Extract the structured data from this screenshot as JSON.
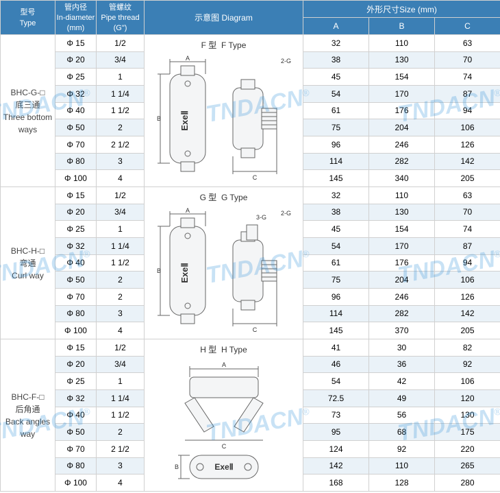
{
  "header": {
    "type": {
      "cn": "型号",
      "en": "Type"
    },
    "in_diameter": {
      "cn": "管内径",
      "en": "In-diameter",
      "unit": "(mm)"
    },
    "pipe_thread": {
      "cn": "管螺纹",
      "en": "Pipe thread",
      "unit": "(G\")"
    },
    "diagram": {
      "cn": "示意图",
      "en": "Diagram"
    },
    "size_group": {
      "cn": "外形尺寸",
      "en": "Size",
      "unit": "(mm)"
    },
    "A": "A",
    "B": "B",
    "C": "C"
  },
  "watermark": "TNDACN",
  "colors": {
    "header_bg": "#3b7fb5",
    "header_fg": "#ffffff",
    "row_alt_bg": "#eaf2f8",
    "row_bg": "#ffffff",
    "border": "#d0d0d0",
    "watermark": "#2a8ed8",
    "diagram_stroke": "#666666",
    "diagram_fill": "#f4f5f6"
  },
  "groups": [
    {
      "type_code": "BHC-G-□",
      "type_cn": "底三通",
      "type_en": "Three bottom ways",
      "diagram": {
        "label_cn": "F 型",
        "label_en": "F Type",
        "kind": "F"
      },
      "rows": [
        {
          "d": "Φ 15",
          "t": "1/2",
          "A": "32",
          "B": "110",
          "C": "63"
        },
        {
          "d": "Φ 20",
          "t": "3/4",
          "A": "38",
          "B": "130",
          "C": "70"
        },
        {
          "d": "Φ 25",
          "t": "1",
          "A": "45",
          "B": "154",
          "C": "74"
        },
        {
          "d": "Φ 32",
          "t": "1 1/4",
          "A": "54",
          "B": "170",
          "C": "87"
        },
        {
          "d": "Φ 40",
          "t": "1 1/2",
          "A": "61",
          "B": "176",
          "C": "94"
        },
        {
          "d": "Φ 50",
          "t": "2",
          "A": "75",
          "B": "204",
          "C": "106"
        },
        {
          "d": "Φ 70",
          "t": "2 1/2",
          "A": "96",
          "B": "246",
          "C": "126"
        },
        {
          "d": "Φ 80",
          "t": "3",
          "A": "114",
          "B": "282",
          "C": "142"
        },
        {
          "d": "Φ 100",
          "t": "4",
          "A": "145",
          "B": "340",
          "C": "205"
        }
      ]
    },
    {
      "type_code": "BHC-H-□",
      "type_cn": "弯通",
      "type_en": "Curl way",
      "diagram": {
        "label_cn": "G 型",
        "label_en": "G Type",
        "kind": "G"
      },
      "rows": [
        {
          "d": "Φ 15",
          "t": "1/2",
          "A": "32",
          "B": "110",
          "C": "63"
        },
        {
          "d": "Φ 20",
          "t": "3/4",
          "A": "38",
          "B": "130",
          "C": "70"
        },
        {
          "d": "Φ 25",
          "t": "1",
          "A": "45",
          "B": "154",
          "C": "74"
        },
        {
          "d": "Φ 32",
          "t": "1 1/4",
          "A": "54",
          "B": "170",
          "C": "87"
        },
        {
          "d": "Φ 40",
          "t": "1 1/2",
          "A": "61",
          "B": "176",
          "C": "94"
        },
        {
          "d": "Φ 50",
          "t": "2",
          "A": "75",
          "B": "204",
          "C": "106"
        },
        {
          "d": "Φ 70",
          "t": "2",
          "A": "96",
          "B": "246",
          "C": "126"
        },
        {
          "d": "Φ 80",
          "t": "3",
          "A": "114",
          "B": "282",
          "C": "142"
        },
        {
          "d": "Φ 100",
          "t": "4",
          "A": "145",
          "B": "370",
          "C": "205"
        }
      ]
    },
    {
      "type_code": "BHC-F-□",
      "type_cn": "后角通",
      "type_en": "Back angles way",
      "diagram": {
        "label_cn": "H 型",
        "label_en": "H Type",
        "kind": "H"
      },
      "rows": [
        {
          "d": "Φ 15",
          "t": "1/2",
          "A": "41",
          "B": "30",
          "C": "82"
        },
        {
          "d": "Φ 20",
          "t": "3/4",
          "A": "46",
          "B": "36",
          "C": "92"
        },
        {
          "d": "Φ 25",
          "t": "1",
          "A": "54",
          "B": "42",
          "C": "106"
        },
        {
          "d": "Φ 32",
          "t": "1 1/4",
          "A": "72.5",
          "B": "49",
          "C": "120"
        },
        {
          "d": "Φ 40",
          "t": "1 1/2",
          "A": "73",
          "B": "56",
          "C": "130"
        },
        {
          "d": "Φ 50",
          "t": "2",
          "A": "95",
          "B": "68",
          "C": "175"
        },
        {
          "d": "Φ 70",
          "t": "2 1/2",
          "A": "124",
          "B": "92",
          "C": "220"
        },
        {
          "d": "Φ 80",
          "t": "3",
          "A": "142",
          "B": "110",
          "C": "265"
        },
        {
          "d": "Φ 100",
          "t": "4",
          "A": "168",
          "B": "128",
          "C": "280"
        }
      ]
    }
  ]
}
